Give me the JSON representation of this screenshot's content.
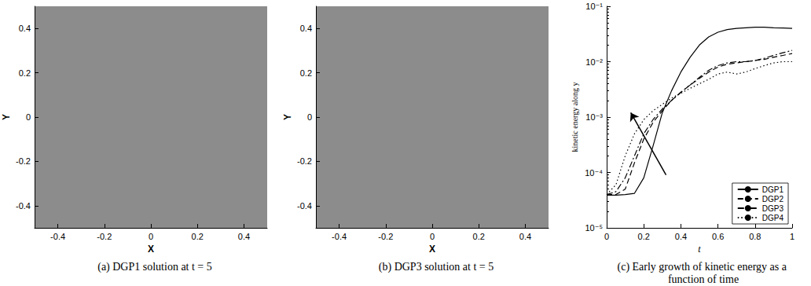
{
  "chart_data": [
    {
      "type": "image",
      "title": "(a) DGP1 solution at t = 5",
      "xlabel": "X",
      "ylabel": "Y",
      "xlim": [
        -0.5,
        0.5
      ],
      "ylim": [
        -0.5,
        0.5
      ],
      "xticks": [
        -0.4,
        -0.2,
        0,
        0.2,
        0.4
      ],
      "yticks": [
        -0.4,
        -0.2,
        0,
        0.2,
        0.4
      ],
      "grid": false
    },
    {
      "type": "image",
      "title": "(b) DGP3 solution at t = 5",
      "xlabel": "X",
      "ylabel": "Y",
      "xlim": [
        -0.5,
        0.5
      ],
      "ylim": [
        -0.5,
        0.5
      ],
      "xticks": [
        -0.4,
        -0.2,
        0,
        0.2,
        0.4
      ],
      "yticks": [
        -0.4,
        -0.2,
        0,
        0.2,
        0.4
      ],
      "grid": false
    },
    {
      "type": "line",
      "title": "(c) Early growth of kinetic energy as a function of time",
      "xlabel": "t",
      "ylabel": "kinetic energy along y",
      "log": "y",
      "grid": false,
      "legend": "bottom right",
      "xlim": [
        0,
        1
      ],
      "xticks": [
        0,
        0.2,
        0.4,
        0.6,
        0.8,
        1
      ],
      "ylim": [
        1e-05,
        0.1
      ],
      "yticks": [
        {
          "value": 1e-05,
          "label": "10⁻⁵"
        },
        {
          "value": 0.0001,
          "label": "10⁻⁴"
        },
        {
          "value": 0.001,
          "label": "10⁻³"
        },
        {
          "value": 0.01,
          "label": "10⁻²"
        },
        {
          "value": 0.1,
          "label": "10⁻¹"
        }
      ],
      "x": [
        0,
        0.05,
        0.1,
        0.15,
        0.2,
        0.25,
        0.3,
        0.35,
        0.4,
        0.45,
        0.5,
        0.55,
        0.6,
        0.65,
        0.7,
        0.75,
        0.8,
        0.85,
        0.9,
        0.95,
        1
      ],
      "series": [
        {
          "name": "DGP1",
          "color": "#000000",
          "line_style": "solid",
          "values": [
            3.9e-05,
            3.9e-05,
            4e-05,
            4.2e-05,
            8e-05,
            0.0003,
            0.0012,
            0.003,
            0.0065,
            0.012,
            0.02,
            0.028,
            0.034,
            0.038,
            0.04,
            0.041,
            0.042,
            0.042,
            0.041,
            0.0405,
            0.04
          ]
        },
        {
          "name": "DGP2",
          "color": "#000000",
          "line_style": "dashed",
          "values": [
            4e-05,
            4e-05,
            5e-05,
            0.00015,
            0.0004,
            0.0008,
            0.0013,
            0.002,
            0.0028,
            0.0038,
            0.005,
            0.0065,
            0.008,
            0.009,
            0.0095,
            0.01,
            0.0105,
            0.011,
            0.012,
            0.013,
            0.014
          ]
        },
        {
          "name": "DGP3",
          "color": "#000000",
          "line_style": "dashdot",
          "values": [
            4e-05,
            4.5e-05,
            8e-05,
            0.0002,
            0.0005,
            0.0009,
            0.0014,
            0.002,
            0.0028,
            0.0038,
            0.0052,
            0.007,
            0.0085,
            0.0095,
            0.01,
            0.01,
            0.0105,
            0.0115,
            0.013,
            0.0145,
            0.016
          ]
        },
        {
          "name": "DGP4",
          "color": "#000000",
          "line_style": "dotted",
          "values": [
            4e-05,
            6e-05,
            0.0002,
            0.0005,
            0.0009,
            0.0013,
            0.0017,
            0.0022,
            0.0027,
            0.0033,
            0.004,
            0.0048,
            0.006,
            0.0065,
            0.006,
            0.0065,
            0.0075,
            0.0085,
            0.0095,
            0.01,
            0.01
          ]
        }
      ]
    }
  ]
}
